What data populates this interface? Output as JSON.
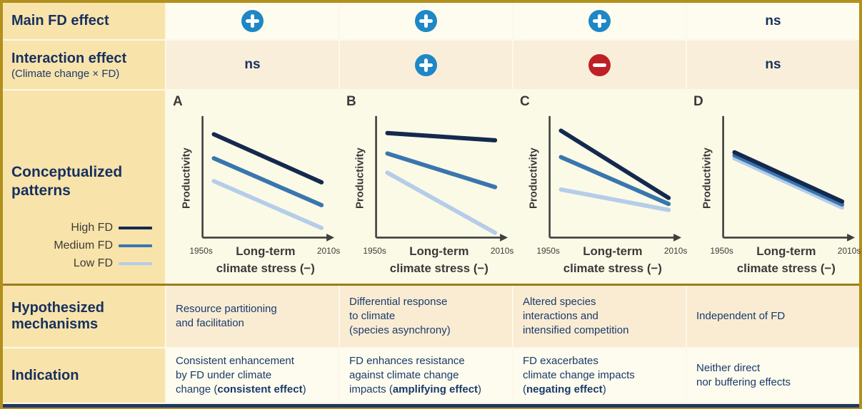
{
  "figure": {
    "columns": [
      "A",
      "B",
      "C",
      "D"
    ],
    "rows": {
      "main_effect": {
        "label": "Main FD effect",
        "values": [
          "plus",
          "plus",
          "plus",
          "ns"
        ]
      },
      "interaction_effect": {
        "label": "Interaction effect",
        "sublabel": "(Climate change × FD)",
        "values": [
          "ns",
          "plus",
          "minus",
          "ns"
        ]
      },
      "patterns": {
        "label": "Conceptualized patterns",
        "legend": [
          {
            "label": "High FD",
            "color": "#14294e"
          },
          {
            "label": "Medium FD",
            "color": "#3a76ae"
          },
          {
            "label": "Low FD",
            "color": "#b5cde9"
          }
        ]
      },
      "mechanisms": {
        "label": "Hypothesized mechanisms",
        "values": [
          "Resource partitioning\nand facilitation",
          "Differential response\nto climate\n(species asynchrony)",
          "Altered species\ninteractions and\nintensified competition",
          "Independent of FD"
        ]
      },
      "indication": {
        "label": "Indication",
        "values": [
          {
            "pre": "Consistent enhancement\nby FD under climate\nchange (",
            "bold": "consistent effect",
            "post": ")"
          },
          {
            "pre": "FD enhances resistance\nagainst climate change\nimpacts (",
            "bold": "amplifying effect",
            "post": ")"
          },
          {
            "pre": "FD exacerbates\nclimate change impacts\n(",
            "bold": "negating effect",
            "post": ")"
          },
          {
            "pre": "Neither direct\nnor buffering effects",
            "bold": "",
            "post": ""
          }
        ]
      }
    }
  },
  "chart_labels": {
    "ylabel": "Productivity",
    "x_left": "1950s",
    "x_right": "2010s",
    "xlabel_line1": "Long-term",
    "xlabel_line2": "climate stress (−)"
  },
  "chart_data": [
    {
      "panel": "A",
      "type": "line",
      "description": "Parallel declines: constant positive FD effect under increasing climate stress",
      "xlabel": "Long-term climate stress (−)",
      "ylabel": "Productivity",
      "x_range_labels": [
        "1950s",
        "2010s"
      ],
      "series": [
        {
          "name": "High FD",
          "color": "#14294e",
          "y_start_pct": 86,
          "y_end_pct": 46
        },
        {
          "name": "Medium FD",
          "color": "#3a76ae",
          "y_start_pct": 66,
          "y_end_pct": 27
        },
        {
          "name": "Low FD",
          "color": "#b5cde9",
          "y_start_pct": 47,
          "y_end_pct": 8
        }
      ]
    },
    {
      "panel": "B",
      "type": "line",
      "description": "Diverging lines: high FD buffers decline, low FD declines steeply",
      "xlabel": "Long-term climate stress (−)",
      "ylabel": "Productivity",
      "x_range_labels": [
        "1950s",
        "2010s"
      ],
      "series": [
        {
          "name": "High FD",
          "color": "#14294e",
          "y_start_pct": 87,
          "y_end_pct": 81
        },
        {
          "name": "Medium FD",
          "color": "#3a76ae",
          "y_start_pct": 70,
          "y_end_pct": 42
        },
        {
          "name": "Low FD",
          "color": "#b5cde9",
          "y_start_pct": 54,
          "y_end_pct": 4
        }
      ]
    },
    {
      "panel": "C",
      "type": "line",
      "description": "Converging lines: high FD declines fastest, lines meet under high stress",
      "xlabel": "Long-term climate stress (−)",
      "ylabel": "Productivity",
      "x_range_labels": [
        "1950s",
        "2010s"
      ],
      "series": [
        {
          "name": "High FD",
          "color": "#14294e",
          "y_start_pct": 89,
          "y_end_pct": 33
        },
        {
          "name": "Medium FD",
          "color": "#3a76ae",
          "y_start_pct": 67,
          "y_end_pct": 28
        },
        {
          "name": "Low FD",
          "color": "#b5cde9",
          "y_start_pct": 40,
          "y_end_pct": 23
        }
      ]
    },
    {
      "panel": "D",
      "type": "line",
      "description": "Overlapping lines: identical declines regardless of FD level",
      "xlabel": "Long-term climate stress (−)",
      "ylabel": "Productivity",
      "x_range_labels": [
        "1950s",
        "2010s"
      ],
      "series": [
        {
          "name": "High FD",
          "color": "#14294e",
          "y_start_pct": 71,
          "y_end_pct": 30
        },
        {
          "name": "Medium FD",
          "color": "#3a76ae",
          "y_start_pct": 68.5,
          "y_end_pct": 27.5
        },
        {
          "name": "Low FD",
          "color": "#b5cde9",
          "y_start_pct": 66,
          "y_end_pct": 25
        }
      ]
    }
  ],
  "colors": {
    "plus": "#1e87c6",
    "minus": "#bd2026",
    "frame_gold": "#b2901d",
    "divider_gold": "#9c7d1a",
    "navy_strip": "#1f3864",
    "label_bg": "#f8e3ab",
    "cream_bg": "#fdfcee",
    "peach_bg": "#f9eeda",
    "heading_navy": "#17305e",
    "body_navy": "#1b3a6b"
  }
}
